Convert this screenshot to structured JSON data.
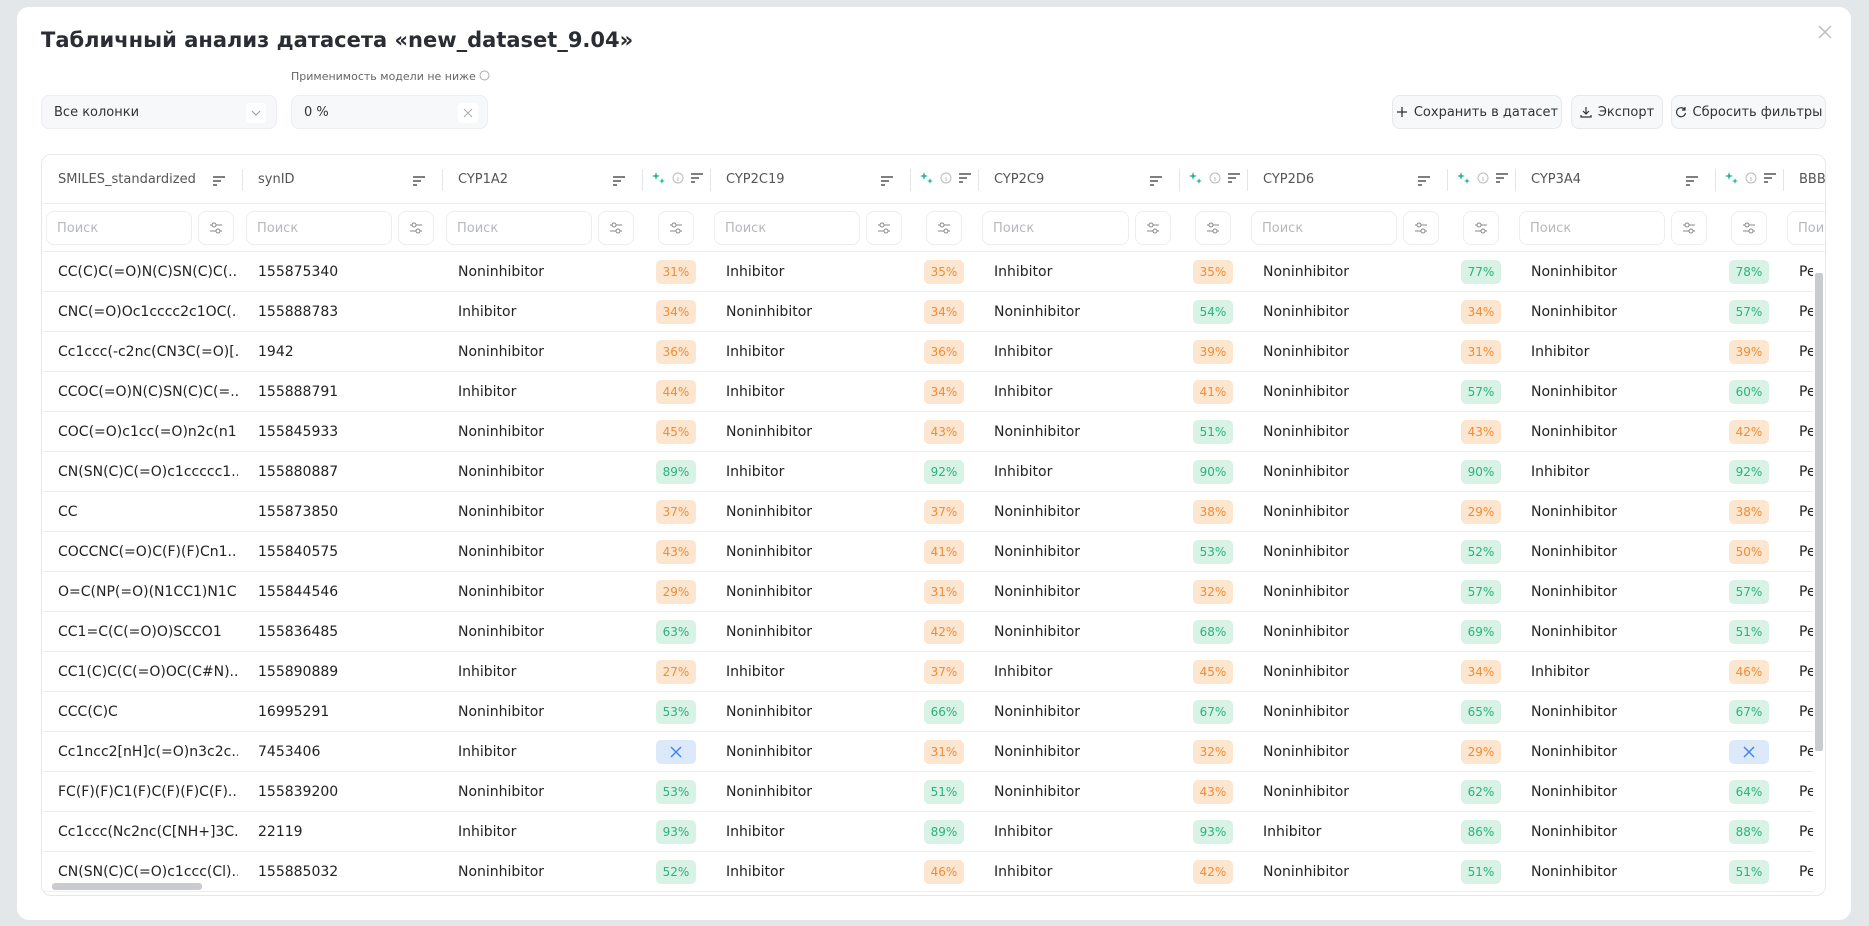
{
  "header": {
    "title": "Табличный анализ датасета «new_dataset_9.04»"
  },
  "filters": {
    "columns_select": "Все колонки",
    "applicability_label": "Применимость модели не ниже",
    "applicability_value": "0 %",
    "search_placeholder": "Поиск"
  },
  "actions": [
    "Сохранить в датасет",
    "Экспорт",
    "Сбросить фильтры"
  ],
  "table": {
    "columns": [
      "SMILES_standardized",
      "synID",
      "CYP1A2",
      "CYP2C19",
      "CYP2C9",
      "CYP2D6",
      "CYP3A4",
      "BBBP"
    ],
    "rows": [
      [
        "CC(C)C(=O)N(C)SN(C)C(...",
        "155875340",
        "Noninhibitor",
        "31%",
        "Inhibitor",
        "35%",
        "Inhibitor",
        "35%",
        "Noninhibitor",
        "77%",
        "Noninhibitor",
        "78%",
        "Pe"
      ],
      [
        "CNC(=O)Oc1cccc2c1OC(...",
        "155888783",
        "Inhibitor",
        "34%",
        "Noninhibitor",
        "34%",
        "Noninhibitor",
        "54%",
        "Noninhibitor",
        "34%",
        "Noninhibitor",
        "57%",
        "Pe"
      ],
      [
        "Cc1ccc(-c2nc(CN3C(=O)[...",
        "1942",
        "Noninhibitor",
        "36%",
        "Inhibitor",
        "36%",
        "Inhibitor",
        "39%",
        "Noninhibitor",
        "31%",
        "Inhibitor",
        "39%",
        "Pe"
      ],
      [
        "CCOC(=O)N(C)SN(C)C(=...",
        "155888791",
        "Inhibitor",
        "44%",
        "Inhibitor",
        "34%",
        "Inhibitor",
        "41%",
        "Noninhibitor",
        "57%",
        "Noninhibitor",
        "60%",
        "Pe"
      ],
      [
        "COC(=O)c1cc(=O)n2c(n1...",
        "155845933",
        "Noninhibitor",
        "45%",
        "Noninhibitor",
        "43%",
        "Noninhibitor",
        "51%",
        "Noninhibitor",
        "43%",
        "Noninhibitor",
        "42%",
        "Pe"
      ],
      [
        "CN(SN(C)C(=O)c1ccccc1...",
        "155880887",
        "Noninhibitor",
        "89%",
        "Inhibitor",
        "92%",
        "Inhibitor",
        "90%",
        "Noninhibitor",
        "90%",
        "Inhibitor",
        "92%",
        "Pe"
      ],
      [
        "CC",
        "155873850",
        "Noninhibitor",
        "37%",
        "Noninhibitor",
        "37%",
        "Noninhibitor",
        "38%",
        "Noninhibitor",
        "29%",
        "Noninhibitor",
        "38%",
        "Pe"
      ],
      [
        "COCCNC(=O)C(F)(F)Cn1...",
        "155840575",
        "Noninhibitor",
        "43%",
        "Noninhibitor",
        "41%",
        "Noninhibitor",
        "53%",
        "Noninhibitor",
        "52%",
        "Noninhibitor",
        "50%",
        "Pe"
      ],
      [
        "O=C(NP(=O)(N1CC1)N1C...",
        "155844546",
        "Noninhibitor",
        "29%",
        "Noninhibitor",
        "31%",
        "Noninhibitor",
        "32%",
        "Noninhibitor",
        "57%",
        "Noninhibitor",
        "57%",
        "Pe"
      ],
      [
        "CC1=C(C(=O)O)SCCO1",
        "155836485",
        "Noninhibitor",
        "63%",
        "Noninhibitor",
        "42%",
        "Noninhibitor",
        "68%",
        "Noninhibitor",
        "69%",
        "Noninhibitor",
        "51%",
        "Pe"
      ],
      [
        "CC1(C)C(C(=O)OC(C#N)...",
        "155890889",
        "Inhibitor",
        "27%",
        "Inhibitor",
        "37%",
        "Inhibitor",
        "45%",
        "Noninhibitor",
        "34%",
        "Inhibitor",
        "46%",
        "Pe"
      ],
      [
        "CCC(C)C",
        "16995291",
        "Noninhibitor",
        "53%",
        "Noninhibitor",
        "66%",
        "Noninhibitor",
        "67%",
        "Noninhibitor",
        "65%",
        "Noninhibitor",
        "67%",
        "Pe"
      ],
      [
        "Cc1ncc2[nH]c(=O)n3c2c...",
        "7453406",
        "Inhibitor",
        null,
        "Noninhibitor",
        "31%",
        "Noninhibitor",
        "32%",
        "Noninhibitor",
        "29%",
        "Noninhibitor",
        null,
        "Pe"
      ],
      [
        "FC(F)(F)C1(F)C(F)(F)C(F)...",
        "155839200",
        "Noninhibitor",
        "53%",
        "Noninhibitor",
        "51%",
        "Noninhibitor",
        "43%",
        "Noninhibitor",
        "62%",
        "Noninhibitor",
        "64%",
        "Pe"
      ],
      [
        "Cc1ccc(Nc2nc(C[NH+]3C...",
        "22119",
        "Inhibitor",
        "93%",
        "Inhibitor",
        "89%",
        "Inhibitor",
        "93%",
        "Inhibitor",
        "86%",
        "Noninhibitor",
        "88%",
        "Pe"
      ],
      [
        "CN(SN(C)C(=O)c1ccc(Cl)...",
        "155885032",
        "Noninhibitor",
        "52%",
        "Inhibitor",
        "46%",
        "Inhibitor",
        "42%",
        "Noninhibitor",
        "51%",
        "Noninhibitor",
        "51%",
        "Pe"
      ]
    ]
  }
}
